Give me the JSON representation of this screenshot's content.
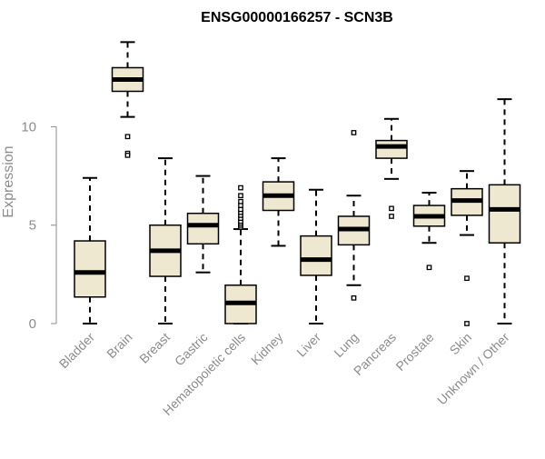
{
  "chart_data": {
    "type": "box",
    "title": "ENSG00000166257 - SCN3B",
    "xlabel": "",
    "ylabel": "Expression",
    "ylim": [
      0,
      14.5
    ],
    "yticks": [
      0,
      5,
      10
    ],
    "box_color": "#efe8d0",
    "categories": [
      "Bladder",
      "Brain",
      "Breast",
      "Gastric",
      "Hematopoietic cells",
      "Kidney",
      "Liver",
      "Lung",
      "Pancreas",
      "Prostate",
      "Skin",
      "Unknown / Other"
    ],
    "series": [
      {
        "name": "Bladder",
        "whisker_low": 0,
        "q1": 1.35,
        "median": 2.6,
        "q3": 4.2,
        "whisker_high": 7.4,
        "outliers": []
      },
      {
        "name": "Brain",
        "whisker_low": 10.5,
        "q1": 11.8,
        "median": 12.4,
        "q3": 13.0,
        "whisker_high": 14.3,
        "outliers": [
          9.5,
          8.65,
          8.55
        ]
      },
      {
        "name": "Breast",
        "whisker_low": 0,
        "q1": 2.4,
        "median": 3.7,
        "q3": 5.0,
        "whisker_high": 8.4,
        "outliers": []
      },
      {
        "name": "Gastric",
        "whisker_low": 2.6,
        "q1": 4.05,
        "median": 5.0,
        "q3": 5.6,
        "whisker_high": 7.5,
        "outliers": []
      },
      {
        "name": "Hematopoietic cells",
        "whisker_low": 0,
        "q1": 0,
        "median": 1.05,
        "q3": 1.95,
        "whisker_high": 4.8,
        "outliers": [
          4.9,
          5.0,
          5.1,
          5.2,
          5.35,
          5.5,
          5.65,
          5.8,
          6.0,
          6.2,
          6.5,
          6.9
        ]
      },
      {
        "name": "Kidney",
        "whisker_low": 3.95,
        "q1": 5.75,
        "median": 6.5,
        "q3": 7.2,
        "whisker_high": 8.4,
        "outliers": []
      },
      {
        "name": "Liver",
        "whisker_low": 0,
        "q1": 2.45,
        "median": 3.25,
        "q3": 4.45,
        "whisker_high": 6.8,
        "outliers": []
      },
      {
        "name": "Lung",
        "whisker_low": 1.95,
        "q1": 4.0,
        "median": 4.8,
        "q3": 5.45,
        "whisker_high": 6.5,
        "outliers": [
          9.7,
          1.3
        ]
      },
      {
        "name": "Pancreas",
        "whisker_low": 7.35,
        "q1": 8.4,
        "median": 9.0,
        "q3": 9.3,
        "whisker_high": 10.4,
        "outliers": [
          5.85,
          5.45
        ]
      },
      {
        "name": "Prostate",
        "whisker_low": 4.1,
        "q1": 4.95,
        "median": 5.45,
        "q3": 6.0,
        "whisker_high": 6.65,
        "outliers": [
          2.85
        ]
      },
      {
        "name": "Skin",
        "whisker_low": 4.5,
        "q1": 5.5,
        "median": 6.25,
        "q3": 6.85,
        "whisker_high": 7.75,
        "outliers": [
          2.3,
          0
        ]
      },
      {
        "name": "Unknown / Other",
        "whisker_low": 0,
        "q1": 4.1,
        "median": 5.8,
        "q3": 7.05,
        "whisker_high": 11.4,
        "outliers": []
      }
    ]
  }
}
